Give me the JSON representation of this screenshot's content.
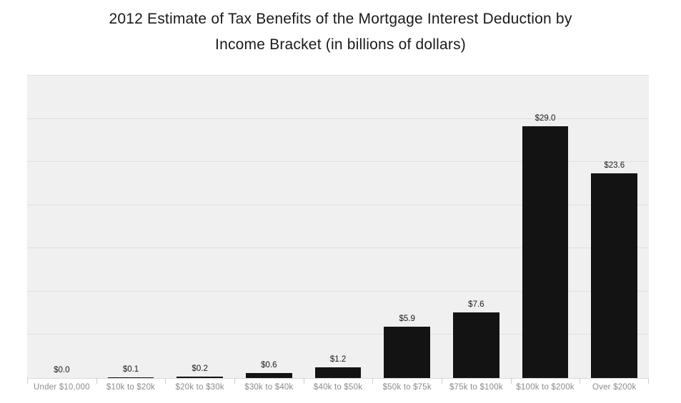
{
  "header": {
    "title_line1": "2012 Estimate of Tax Benefits of the Mortgage Interest Deduction by",
    "title_line2": "Income Bracket (in billions of dollars)"
  },
  "chart_data": {
    "type": "bar",
    "title": "2012 Estimate of Tax Benefits of the Mortgage Interest Deduction by Income Bracket (in billions of dollars)",
    "categories": [
      "Under $10,000",
      "$10k to $20k",
      "$20k to $30k",
      "$30k to $40k",
      "$40k to $50k",
      "$50k to $75k",
      "$75k to $100k",
      "$100k to $200k",
      "Over $200k"
    ],
    "values": [
      0.0,
      0.1,
      0.2,
      0.6,
      1.2,
      5.9,
      7.6,
      29.0,
      23.6
    ],
    "value_labels": [
      "$0.0",
      "$0.1",
      "$0.2",
      "$0.6",
      "$1.2",
      "$5.9",
      "$7.6",
      "$29.0",
      "$23.6"
    ],
    "xlabel": "",
    "ylabel": "",
    "ylim": [
      0,
      35
    ],
    "grid_step": 5,
    "grid": true,
    "legend": false,
    "colors": {
      "page_background": "#ffffff",
      "plot_background": "#f0f0f0",
      "bar": "#131313",
      "gridline": "#dfdfdf",
      "tick": "#cccccc",
      "value_label": "#1a1a1a",
      "category_label": "#8b8b8b",
      "title": "#1a1a1a"
    }
  }
}
